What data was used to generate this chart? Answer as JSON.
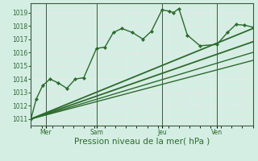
{
  "bg_color": "#d4eee4",
  "plot_bg_color": "#d4eee4",
  "grid_color": "#e8e8e8",
  "line_color": "#2d6a2d",
  "marker_style": "D",
  "title": "Pression niveau de la mer( hPa )",
  "ylabel_values": [
    1011,
    1012,
    1013,
    1014,
    1015,
    1016,
    1017,
    1018,
    1019
  ],
  "ylim": [
    1010.5,
    1019.7
  ],
  "xlim": [
    0.0,
    10.5
  ],
  "xtick_labels": [
    "Mer",
    "Sam",
    "Jeu",
    "Ven"
  ],
  "series": [
    {
      "x": [
        0.0,
        0.25,
        0.55,
        0.9,
        1.3,
        1.7,
        2.1,
        2.5,
        3.1,
        3.5,
        3.9,
        4.3,
        4.8,
        5.3,
        5.7,
        6.2,
        6.55,
        6.75,
        7.0,
        7.4,
        8.0,
        8.8,
        9.3,
        9.7,
        10.1,
        10.5
      ],
      "y": [
        1011.0,
        1012.5,
        1013.5,
        1014.0,
        1013.7,
        1013.3,
        1014.0,
        1014.1,
        1016.3,
        1016.4,
        1017.5,
        1017.8,
        1017.5,
        1017.0,
        1017.6,
        1019.2,
        1019.1,
        1019.0,
        1019.3,
        1017.3,
        1016.5,
        1016.6,
        1017.5,
        1018.1,
        1018.05,
        1017.9
      ],
      "has_marker": true,
      "lw": 1.0,
      "ms": 2.2
    },
    {
      "x": [
        0.0,
        10.5
      ],
      "y": [
        1011.0,
        1017.8
      ],
      "has_marker": false,
      "lw": 1.3
    },
    {
      "x": [
        0.0,
        10.5
      ],
      "y": [
        1011.0,
        1016.8
      ],
      "has_marker": false,
      "lw": 1.3
    },
    {
      "x": [
        0.0,
        10.5
      ],
      "y": [
        1011.0,
        1016.0
      ],
      "has_marker": false,
      "lw": 1.0
    },
    {
      "x": [
        0.0,
        10.5
      ],
      "y": [
        1011.0,
        1015.4
      ],
      "has_marker": false,
      "lw": 1.0
    }
  ],
  "vline_positions": [
    0.7,
    3.1,
    6.2,
    8.8
  ],
  "vline_color": "#3a5a3a",
  "vline_lw": 0.7,
  "tick_fontsize": 5.5,
  "xlabel_fontsize": 7.5
}
